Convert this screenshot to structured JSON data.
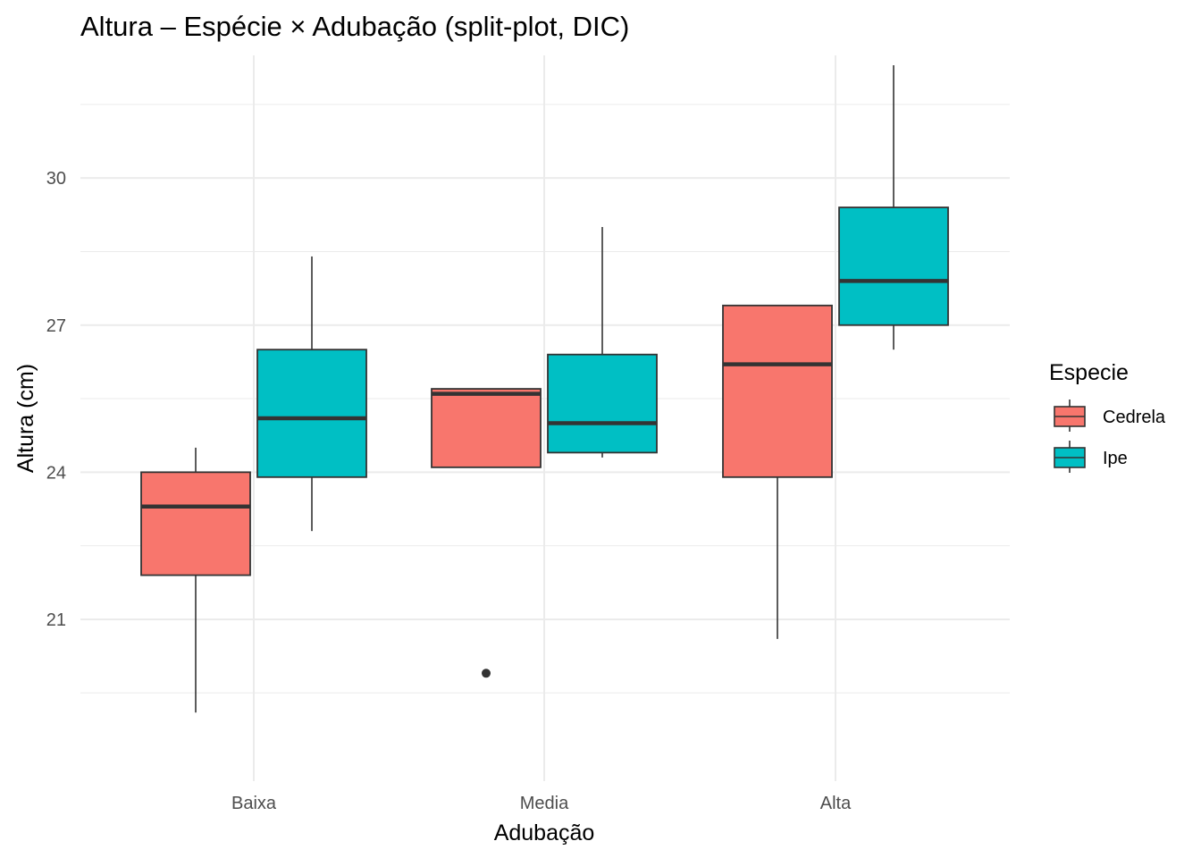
{
  "chart_data": {
    "type": "boxplot",
    "title": "Altura – Espécie × Adubação (split-plot, DIC)",
    "xlabel": "Adubação",
    "ylabel": "Altura (cm)",
    "categories": [
      "Baixa",
      "Media",
      "Alta"
    ],
    "ylim": [
      17.7,
      32.5
    ],
    "yticks": [
      21,
      24,
      27,
      30
    ],
    "y_minor_ticks": [
      19.5,
      22.5,
      25.5,
      28.5,
      31.5
    ],
    "grid": true,
    "legend": {
      "title": "Especie",
      "position": "right",
      "entries": [
        "Cedrela",
        "Ipe"
      ]
    },
    "series": [
      {
        "name": "Cedrela",
        "color": "#F8766D",
        "boxes": [
          {
            "category": "Baixa",
            "min": 19.1,
            "q1": 21.9,
            "median": 23.3,
            "q3": 24.0,
            "max": 24.5,
            "outliers": []
          },
          {
            "category": "Media",
            "min": 24.1,
            "q1": 24.1,
            "median": 25.6,
            "q3": 25.7,
            "max": 25.7,
            "outliers": [
              19.9
            ]
          },
          {
            "category": "Alta",
            "min": 20.6,
            "q1": 23.9,
            "median": 26.2,
            "q3": 27.4,
            "max": 27.4,
            "outliers": []
          }
        ]
      },
      {
        "name": "Ipe",
        "color": "#00BFC4",
        "boxes": [
          {
            "category": "Baixa",
            "min": 22.8,
            "q1": 23.9,
            "median": 25.1,
            "q3": 26.5,
            "max": 28.4,
            "outliers": []
          },
          {
            "category": "Media",
            "min": 24.3,
            "q1": 24.4,
            "median": 25.0,
            "q3": 26.4,
            "max": 29.0,
            "outliers": []
          },
          {
            "category": "Alta",
            "min": 26.5,
            "q1": 27.0,
            "median": 27.9,
            "q3": 29.4,
            "max": 32.3,
            "outliers": []
          }
        ]
      }
    ]
  }
}
